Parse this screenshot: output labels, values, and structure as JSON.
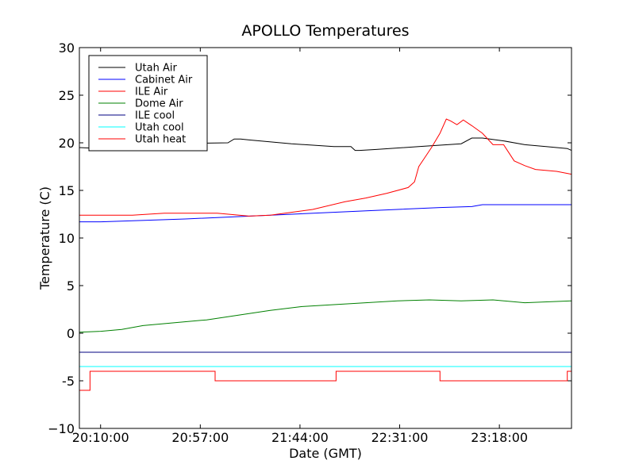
{
  "chart_data": {
    "type": "line",
    "title": "APOLLO Temperatures",
    "xlabel": "Date (GMT)",
    "ylabel": "Temperature (C)",
    "ylim": [
      -10,
      30
    ],
    "xlim_minutes": [
      -10,
      222
    ],
    "yticks": [
      -10,
      -5,
      0,
      5,
      10,
      15,
      20,
      25,
      30
    ],
    "ytick_labels": [
      "−10",
      "-5",
      "0",
      "5",
      "10",
      "15",
      "20",
      "25",
      "30"
    ],
    "xtick_minutes": [
      0,
      47,
      94,
      141,
      188
    ],
    "xtick_labels": [
      "20:10:00",
      "20:57:00",
      "21:44:00",
      "22:31:00",
      "23:18:00"
    ],
    "legend_position": "upper-left",
    "series": [
      {
        "name": "Utah Air",
        "color": "#000000",
        "x": [
          -10,
          0,
          30,
          60,
          63,
          66,
          70,
          90,
          110,
          118,
          120,
          122,
          130,
          150,
          170,
          175,
          180,
          190,
          200,
          210,
          220,
          222
        ],
        "y": [
          19.5,
          19.4,
          19.9,
          20.0,
          20.4,
          20.4,
          20.3,
          19.9,
          19.6,
          19.6,
          19.2,
          19.2,
          19.3,
          19.6,
          19.9,
          20.5,
          20.5,
          20.2,
          19.8,
          19.6,
          19.4,
          19.2
        ]
      },
      {
        "name": "Cabinet Air",
        "color": "#0000ff",
        "x": [
          -10,
          0,
          40,
          80,
          120,
          160,
          175,
          180,
          200,
          222
        ],
        "y": [
          11.7,
          11.7,
          12.0,
          12.4,
          12.8,
          13.2,
          13.3,
          13.5,
          13.5,
          13.5
        ]
      },
      {
        "name": "ILE Air",
        "color": "#ff0000",
        "x": [
          -10,
          15,
          30,
          40,
          55,
          70,
          80,
          90,
          100,
          115,
          125,
          135,
          145,
          148,
          150,
          153,
          156,
          160,
          163,
          165,
          168,
          171,
          175,
          180,
          185,
          190,
          195,
          200,
          205,
          215,
          222
        ],
        "y": [
          12.4,
          12.4,
          12.6,
          12.6,
          12.6,
          12.3,
          12.4,
          12.7,
          13.0,
          13.8,
          14.2,
          14.7,
          15.3,
          15.9,
          17.5,
          18.5,
          19.5,
          21.0,
          22.5,
          22.3,
          21.9,
          22.4,
          21.8,
          21.0,
          19.8,
          19.8,
          18.1,
          17.6,
          17.2,
          17.0,
          16.7
        ]
      },
      {
        "name": "Dome Air",
        "color": "#008000",
        "x": [
          -10,
          0,
          10,
          20,
          35,
          50,
          65,
          80,
          95,
          110,
          125,
          140,
          155,
          170,
          185,
          200,
          222
        ],
        "y": [
          0.1,
          0.2,
          0.4,
          0.8,
          1.1,
          1.4,
          1.9,
          2.4,
          2.8,
          3.0,
          3.2,
          3.4,
          3.5,
          3.4,
          3.5,
          3.2,
          3.4
        ]
      },
      {
        "name": "ILE cool",
        "color": "#000080",
        "x": [
          -10,
          222
        ],
        "y": [
          -2,
          -2
        ]
      },
      {
        "name": "Utah cool",
        "color": "#00ffff",
        "x": [
          -10,
          222
        ],
        "y": [
          -3.5,
          -3.5
        ]
      },
      {
        "name": "Utah heat",
        "color": "#ff0000",
        "step": true,
        "x": [
          -10,
          -5,
          -5,
          54,
          54,
          111,
          111,
          160,
          160,
          220,
          220,
          222
        ],
        "y": [
          -6,
          -6,
          -4,
          -4,
          -5,
          -5,
          -4,
          -4,
          -5,
          -5,
          -4,
          -4
        ]
      }
    ]
  }
}
